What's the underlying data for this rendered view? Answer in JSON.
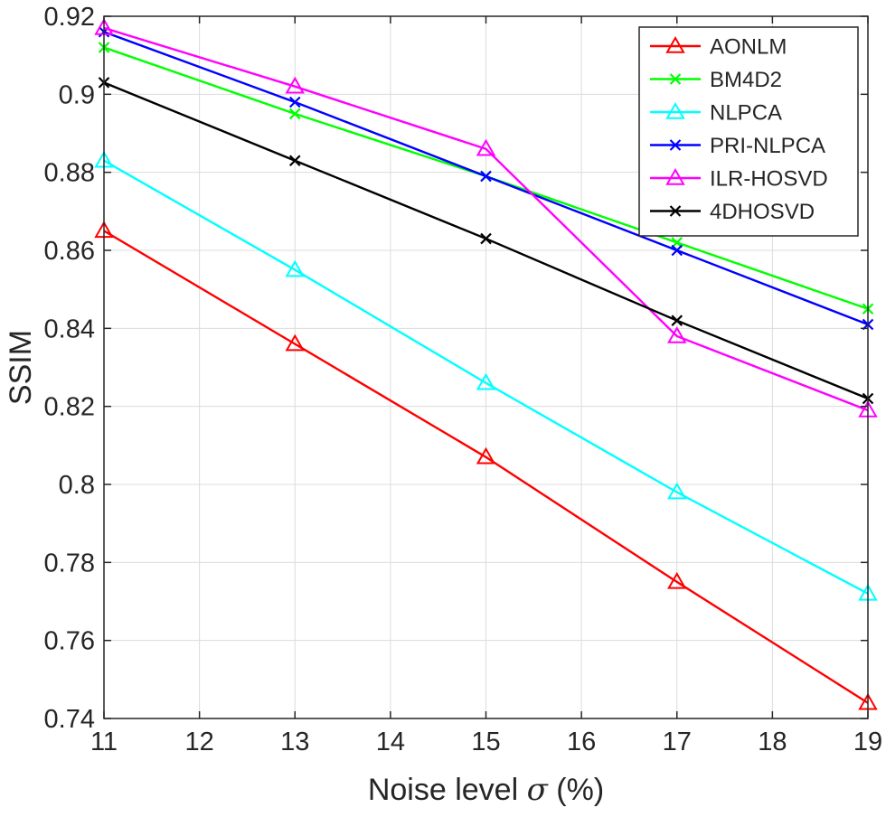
{
  "chart_data": {
    "type": "line",
    "title": "",
    "xlabel": "Noise level σ (%)",
    "ylabel": "SSIM",
    "xlim": [
      11,
      19
    ],
    "ylim": [
      0.74,
      0.92
    ],
    "grid": true,
    "legend_position": "top-right",
    "xticks": [
      "11",
      "12",
      "13",
      "14",
      "15",
      "16",
      "17",
      "18",
      "19"
    ],
    "yticks": [
      "0.74",
      "0.76",
      "0.78",
      "0.8",
      "0.82",
      "0.84",
      "0.86",
      "0.88",
      "0.9",
      "0.92"
    ],
    "x": [
      11,
      13,
      15,
      17,
      19
    ],
    "series": [
      {
        "name": "AONLM",
        "color": "#ff0000",
        "marker": "triangle",
        "values": [
          0.865,
          0.836,
          0.807,
          0.775,
          0.744
        ]
      },
      {
        "name": "BM4D2",
        "color": "#00ff00",
        "marker": "x",
        "values": [
          0.912,
          0.895,
          0.879,
          0.862,
          0.845
        ]
      },
      {
        "name": "NLPCA",
        "color": "#00ffff",
        "marker": "triangle",
        "values": [
          0.883,
          0.855,
          0.826,
          0.798,
          0.772
        ]
      },
      {
        "name": "PRI-NLPCA",
        "color": "#0000ff",
        "marker": "x",
        "values": [
          0.916,
          0.898,
          0.879,
          0.86,
          0.841
        ]
      },
      {
        "name": "ILR-HOSVD",
        "color": "#ff00ff",
        "marker": "triangle",
        "values": [
          0.917,
          0.902,
          0.886,
          0.838,
          0.819
        ]
      },
      {
        "name": "4DHOSVD",
        "color": "#000000",
        "marker": "x",
        "values": [
          0.903,
          0.883,
          0.863,
          0.842,
          0.822
        ]
      }
    ]
  }
}
